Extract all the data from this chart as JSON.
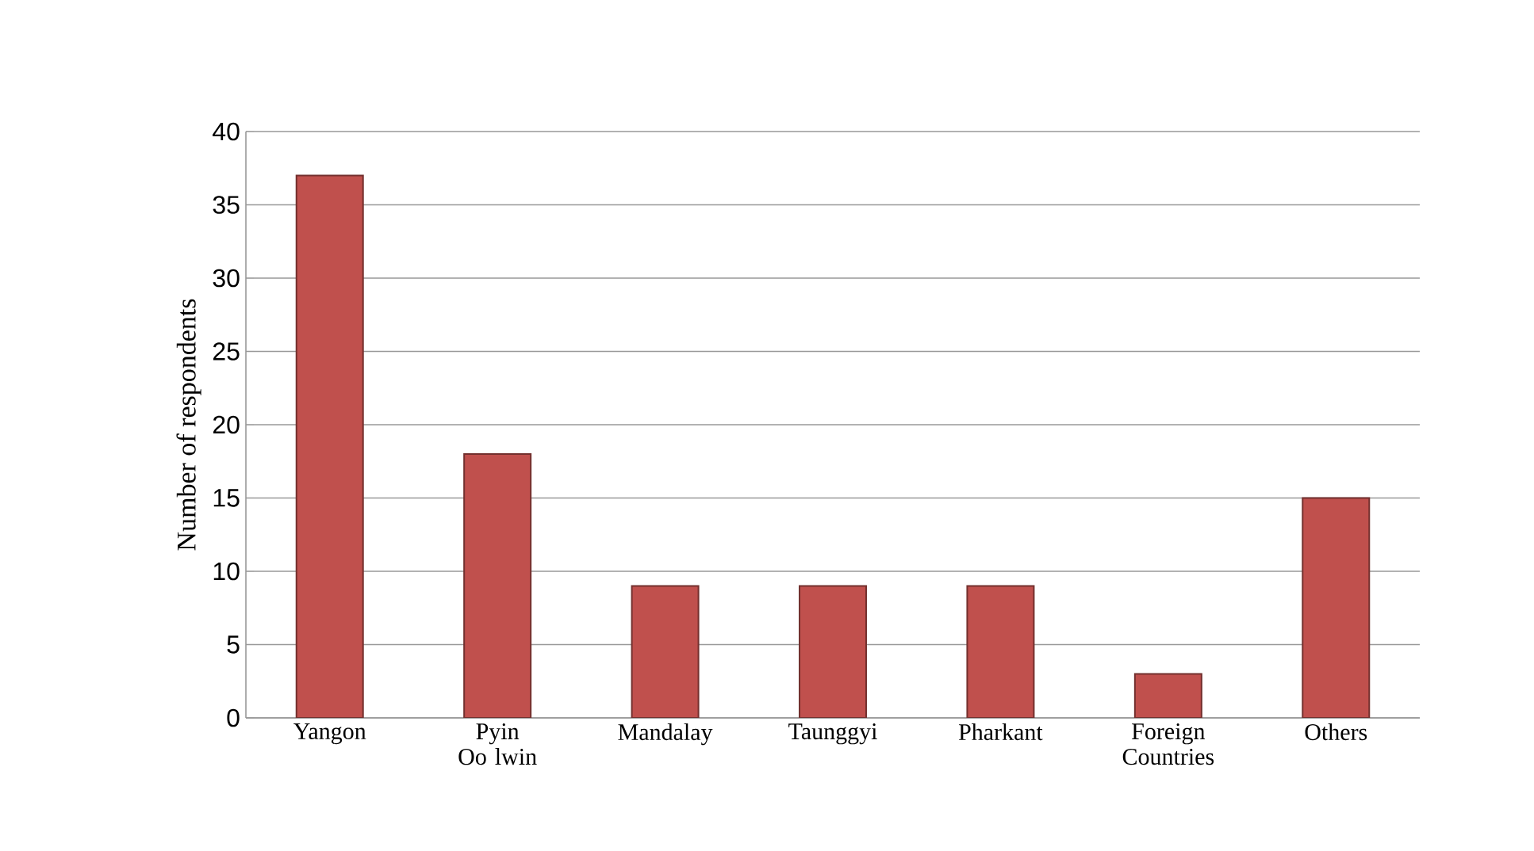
{
  "chart_data": {
    "type": "bar",
    "ylabel": "Number of respondents",
    "categories": [
      "Yangon",
      "Pyin Oo lwin",
      "Mandalay",
      "Taunggyi",
      "Pharkant",
      "Foreign Countries",
      "Others"
    ],
    "values": [
      37,
      18,
      9,
      9,
      9,
      3,
      15
    ],
    "color": "#c0504d",
    "ylim": [
      0,
      40
    ],
    "yticks": [
      0,
      5,
      10,
      15,
      20,
      25,
      30,
      35,
      40
    ],
    "grid": "y"
  }
}
